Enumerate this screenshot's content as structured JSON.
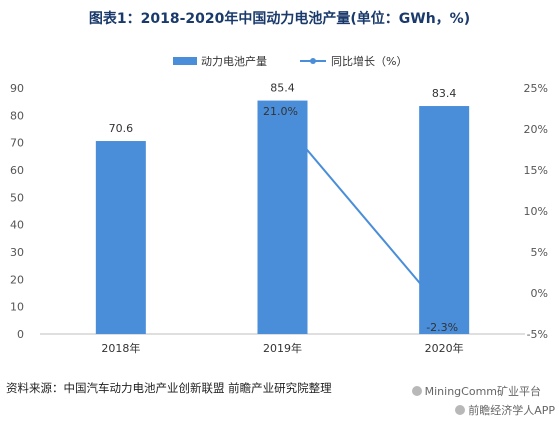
{
  "title": "图表1：2018-2020年中国动力电池产量(单位：GWh，%)",
  "source": "资料来源：中国汽车动力电池产业创新联盟 前瞻产业研究院整理",
  "watermark_lines": [
    "MiningComm矿业平台",
    "前瞻经济学人APP"
  ],
  "colors": {
    "bar": "#4a8ed9",
    "line": "#4a8ed9",
    "title": "#1a3a6b"
  },
  "chart_data": {
    "type": "bar",
    "categories": [
      "2018年",
      "2019年",
      "2020年"
    ],
    "series": [
      {
        "name": "动力电池产量",
        "type": "bar",
        "axis": "left",
        "values": [
          70.6,
          85.4,
          83.4
        ],
        "labels": [
          "70.6",
          "85.4",
          "83.4"
        ]
      },
      {
        "name": "同比增长（%）",
        "type": "line",
        "axis": "right",
        "values": [
          null,
          21.0,
          -2.3
        ],
        "labels": [
          "",
          "21.0%",
          "-2.3%"
        ]
      }
    ],
    "y_left": {
      "min": 0,
      "max": 90,
      "ticks": [
        0,
        10,
        20,
        30,
        40,
        50,
        60,
        70,
        80,
        90
      ]
    },
    "y_right": {
      "min": -5,
      "max": 25,
      "ticks": [
        "-5%",
        "0%",
        "5%",
        "10%",
        "15%",
        "20%",
        "25%"
      ]
    },
    "legend_position": "top",
    "grid": false
  }
}
